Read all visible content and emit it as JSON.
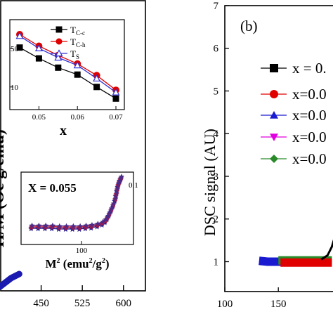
{
  "chart_data": [
    {
      "id": "left",
      "type": "line",
      "ylabel": "H/M (Oe g/emu)",
      "xticks": [
        "450",
        "525",
        "600"
      ],
      "xlim": [
        375,
        640
      ],
      "series_points": [
        [
          375,
          0.02
        ],
        [
          395,
          0.06
        ],
        [
          410,
          0.08
        ]
      ],
      "colors": {
        "curve": "#1a1ab0"
      }
    },
    {
      "id": "left-inset-top",
      "type": "line",
      "xlabel": "x",
      "x": [
        0.045,
        0.05,
        0.055,
        0.06,
        0.065,
        0.07
      ],
      "xticks": [
        "0.05",
        "0.06",
        "0.07"
      ],
      "yticks": [
        "50",
        "10"
      ],
      "series": [
        {
          "name": "T",
          "sub": "C-c",
          "marker": "square",
          "color": "#000000",
          "values": [
            0.73,
            0.59,
            0.47,
            0.38,
            0.22,
            0.07
          ]
        },
        {
          "name": "T",
          "sub": "C-h",
          "marker": "circle",
          "color": "#e00000",
          "values": [
            0.9,
            0.75,
            0.63,
            0.52,
            0.37,
            0.18
          ]
        },
        {
          "name": "T",
          "sub": "S",
          "marker": "triangle-open",
          "color": "#3030d0",
          "values": [
            0.88,
            0.72,
            0.6,
            0.5,
            0.33,
            0.15
          ]
        }
      ]
    },
    {
      "id": "left-inset-bottom",
      "type": "line",
      "annotation": "X = 0.055",
      "xlabel_main": "M",
      "xlabel_sup": "2",
      "xlabel_units": " (emu",
      "xlabel_units_sup": "2",
      "xlabel_units_end": "/g",
      "xlabel_units_sup2": "2",
      "xlabel_close": ")",
      "ytick": "0.1",
      "xticks": [
        "100"
      ],
      "x_frac": [
        0.03,
        0.1,
        0.17,
        0.24,
        0.31,
        0.38,
        0.45,
        0.52,
        0.58,
        0.64,
        0.7,
        0.75,
        0.78,
        0.8,
        0.82,
        0.84,
        0.86,
        0.88,
        0.89,
        0.9,
        0.91,
        0.92,
        0.93,
        0.94
      ],
      "y_frac": [
        0.17,
        0.17,
        0.17,
        0.17,
        0.16,
        0.16,
        0.16,
        0.16,
        0.17,
        0.18,
        0.2,
        0.23,
        0.27,
        0.32,
        0.38,
        0.45,
        0.53,
        0.62,
        0.7,
        0.78,
        0.85,
        0.9,
        0.94,
        0.97
      ],
      "colors": [
        "#1a1a90",
        "#7a1a6a",
        "#b01a3a",
        "#4a2a8a"
      ]
    },
    {
      "id": "right",
      "type": "line",
      "panel_label": "(b)",
      "ylabel": "DSC signal (AU)",
      "yticks": [
        "1",
        "2",
        "3",
        "4",
        "5",
        "6",
        "7"
      ],
      "ylim": [
        0.3,
        7
      ],
      "xticks": [
        "100",
        "150"
      ],
      "xlim": [
        100,
        205
      ],
      "legend": [
        {
          "label": "x = 0.",
          "marker": "square",
          "color": "#000000"
        },
        {
          "label": "x=0.0",
          "marker": "circle",
          "color": "#e00000"
        },
        {
          "label": "x=0.0",
          "marker": "triangle",
          "color": "#1a1ad0"
        },
        {
          "label": "x=0.0",
          "marker": "triangle-down",
          "color": "#e000e0"
        },
        {
          "label": "x=0.0",
          "marker": "diamond",
          "color": "#2a8a2a"
        }
      ],
      "curves": [
        {
          "color": "#1a1ad0",
          "x": [
            132,
            140,
            150,
            160,
            170,
            180,
            190,
            200
          ],
          "y": [
            1.02,
            1.0,
            1.0,
            1.0,
            1.0,
            1.0,
            1.0,
            1.0
          ]
        },
        {
          "color": "#2a8a2a",
          "x": [
            150,
            160,
            170,
            180,
            190,
            200
          ],
          "y": [
            1.03,
            1.03,
            1.03,
            1.03,
            1.03,
            1.03
          ]
        },
        {
          "color": "#e00000",
          "x": [
            152,
            165,
            180,
            195,
            200
          ],
          "y": [
            0.98,
            0.98,
            0.98,
            0.98,
            0.98
          ]
        },
        {
          "color": "#000000",
          "x": [
            190,
            196,
            200,
            203
          ],
          "y": [
            1.05,
            1.15,
            1.35,
            1.6
          ]
        }
      ]
    }
  ]
}
